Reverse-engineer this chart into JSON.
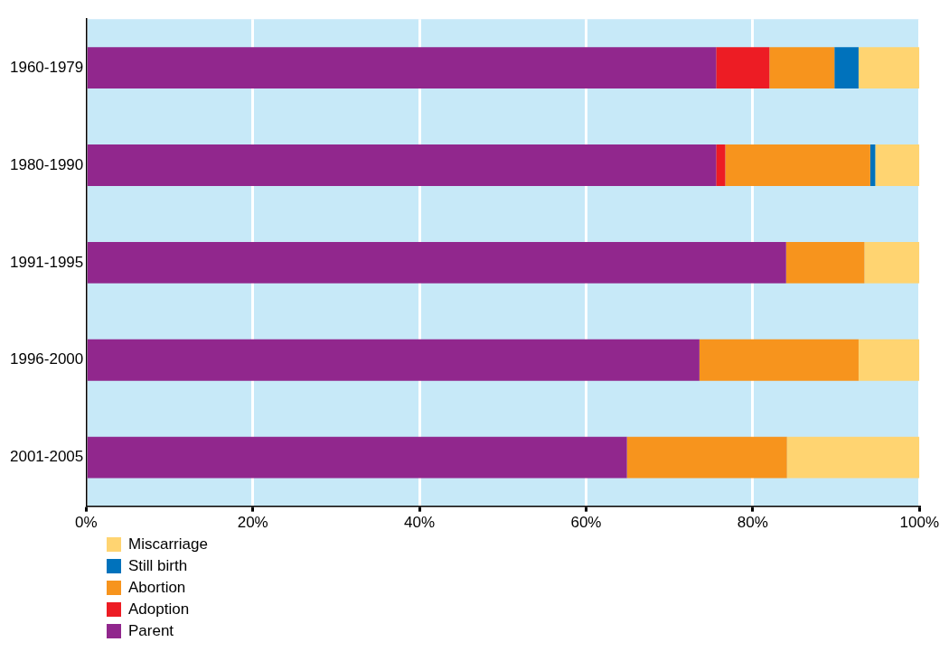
{
  "chart_data": {
    "type": "bar",
    "orientation": "horizontal",
    "stacked": true,
    "categories": [
      "1960-1979",
      "1980-1990",
      "1991-1995",
      "1996-2000",
      "2001-2005"
    ],
    "series": [
      {
        "name": "Parent",
        "color": "#91278d",
        "values": [
          75.6,
          75.6,
          84.0,
          73.6,
          64.9
        ]
      },
      {
        "name": "Adoption",
        "color": "#ed1c24",
        "values": [
          6.4,
          1.1,
          null,
          null,
          null
        ]
      },
      {
        "name": "Abortion",
        "color": "#f7941d",
        "values": [
          7.8,
          17.4,
          9.4,
          19.1,
          19.2
        ]
      },
      {
        "name": "Still birth",
        "color": "#0072bc",
        "values": [
          2.9,
          0.6,
          null,
          null,
          null
        ]
      },
      {
        "name": "Miscarriage",
        "color": "#ffd471",
        "values": [
          7.3,
          5.3,
          6.6,
          7.3,
          15.9
        ]
      }
    ],
    "xlim": [
      0,
      100
    ],
    "xticks": [
      {
        "value": 0,
        "label": "0%"
      },
      {
        "value": 20,
        "label": "20%"
      },
      {
        "value": 40,
        "label": "40%"
      },
      {
        "value": 60,
        "label": "60%"
      },
      {
        "value": 80,
        "label": "80%"
      },
      {
        "value": 100,
        "label": "100%"
      }
    ],
    "grid": "x",
    "legend": "bottom left"
  }
}
